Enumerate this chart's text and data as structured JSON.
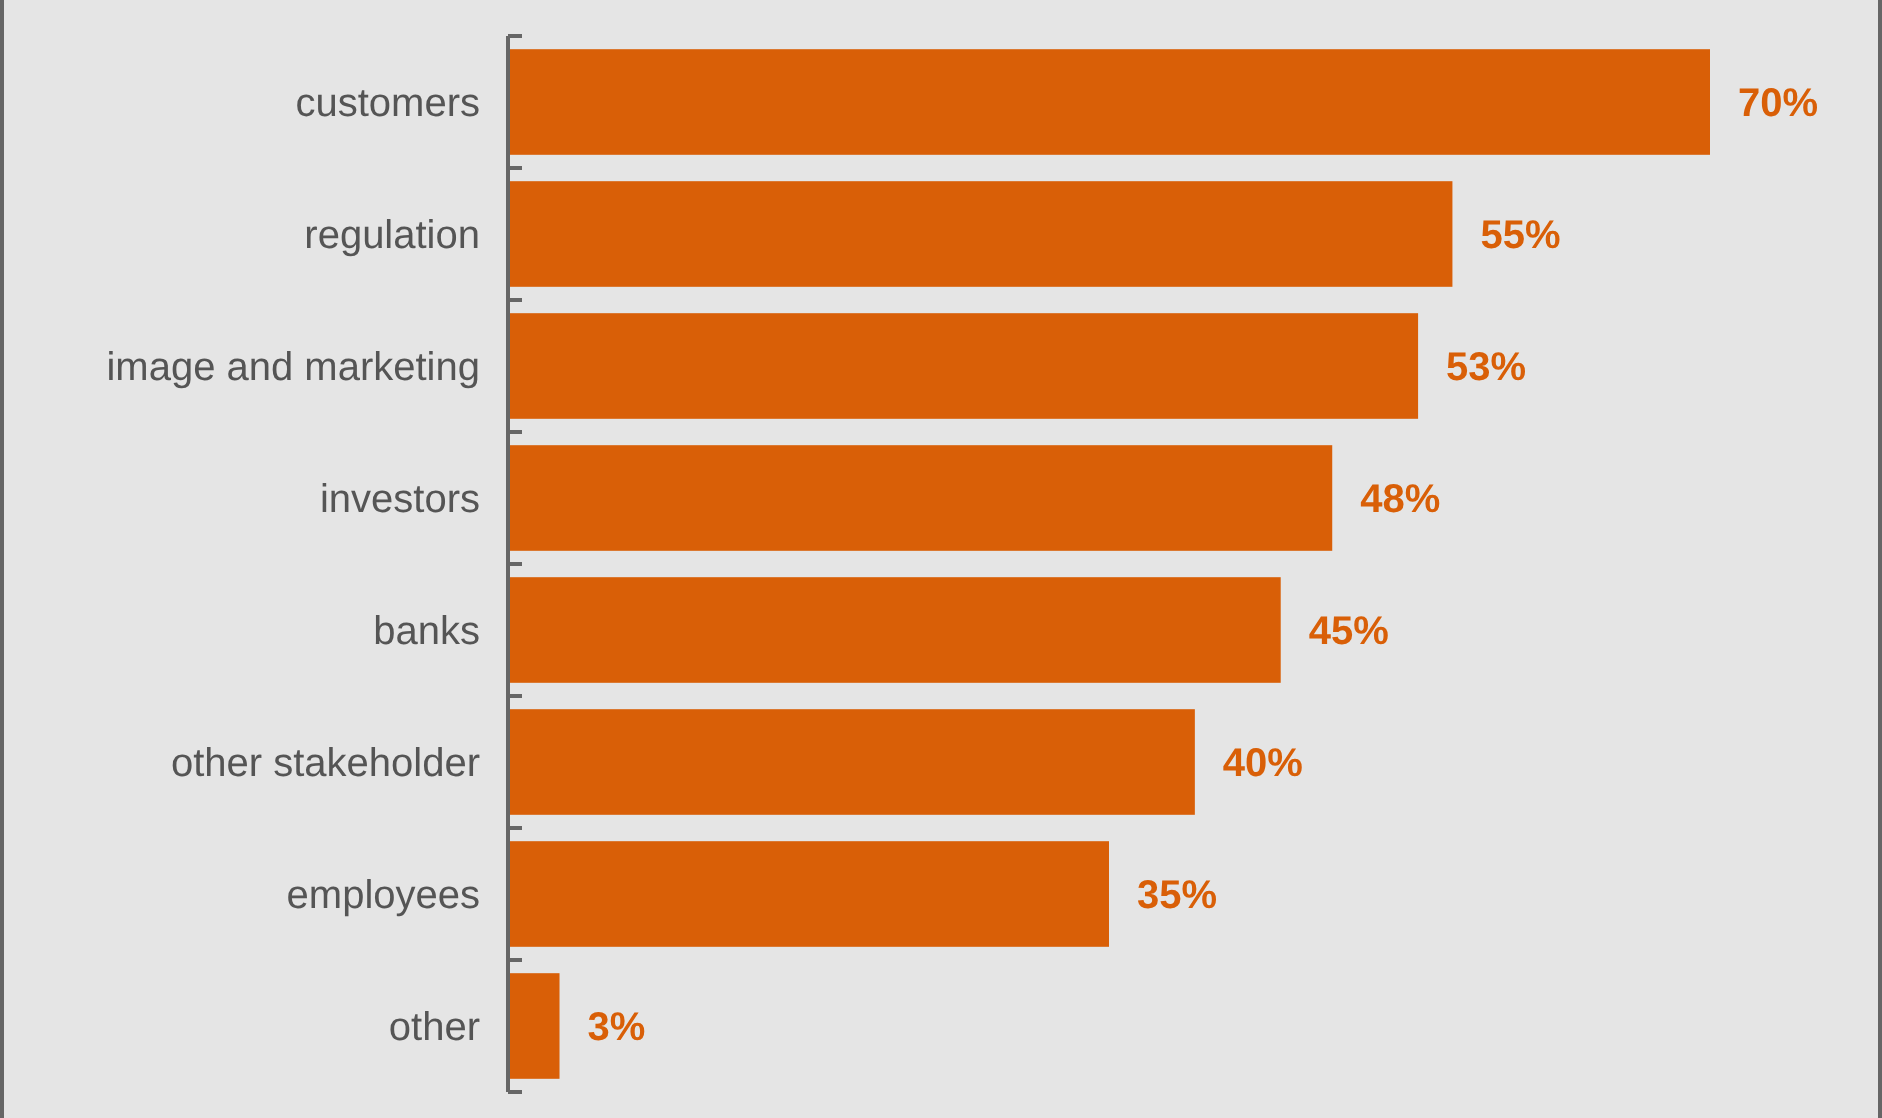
{
  "chart_data": {
    "type": "bar",
    "orientation": "horizontal",
    "categories": [
      "customers",
      "regulation",
      "image and marketing",
      "investors",
      "banks",
      "other stakeholder",
      "employees",
      "other"
    ],
    "values": [
      70,
      55,
      53,
      48,
      45,
      40,
      35,
      3
    ],
    "value_labels": [
      "70%",
      "55%",
      "53%",
      "48%",
      "45%",
      "40%",
      "35%",
      "3%"
    ],
    "color": "#d95f07"
  }
}
